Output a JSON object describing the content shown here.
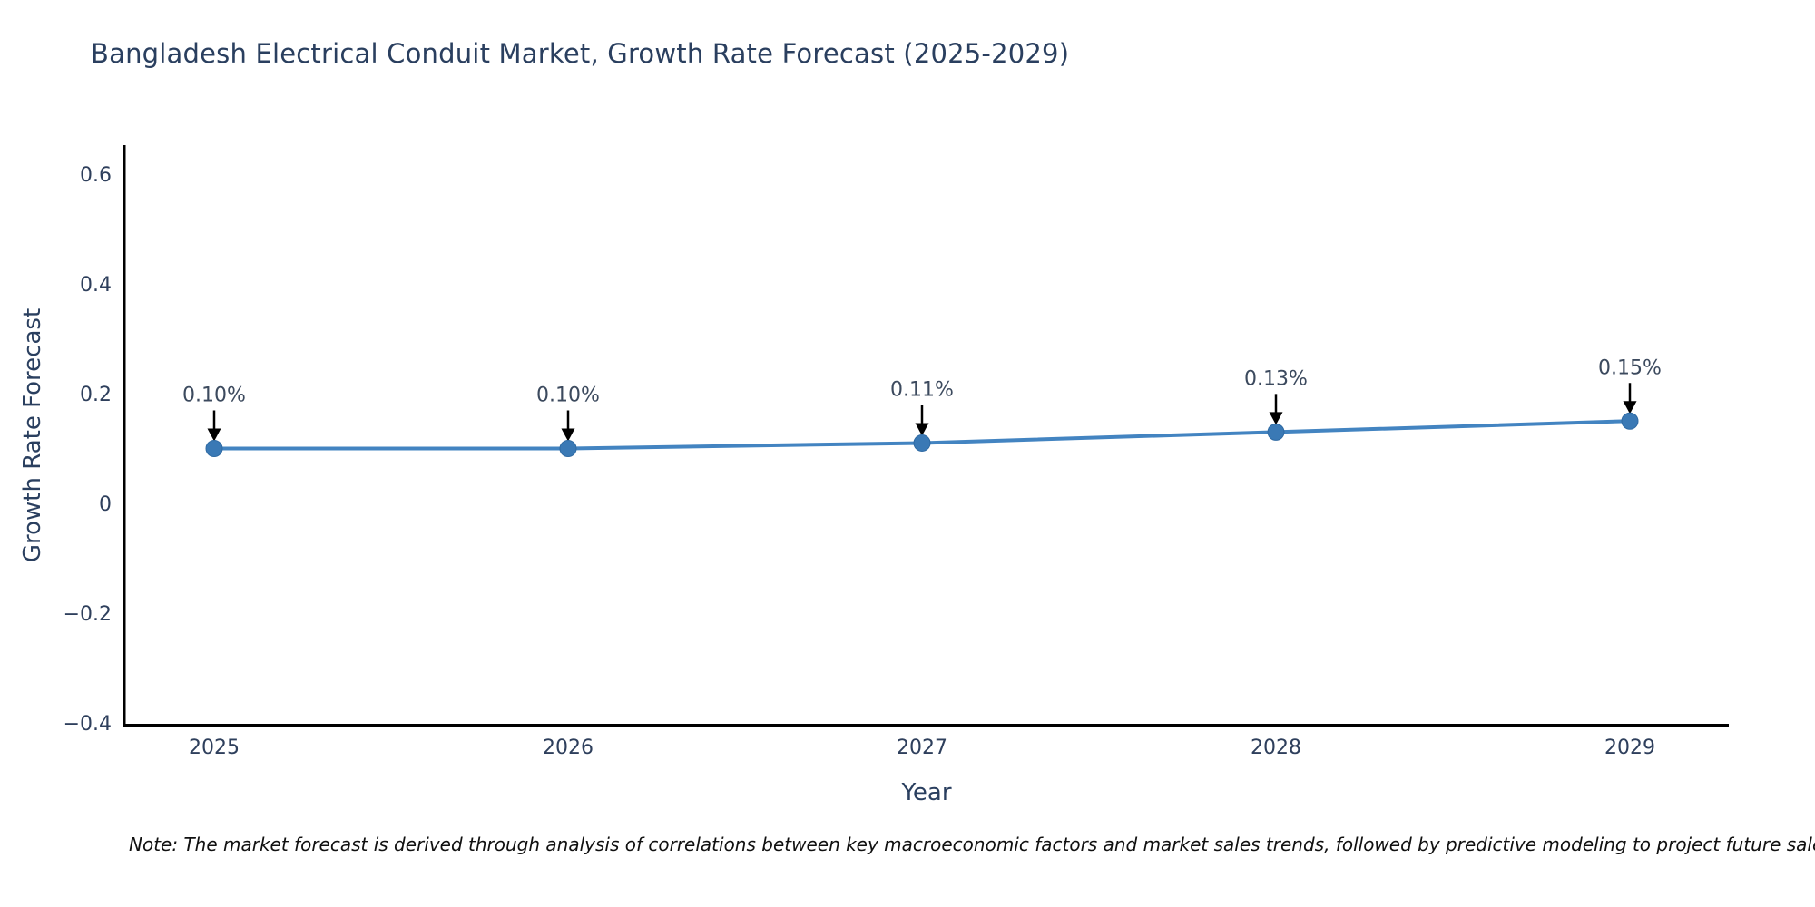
{
  "chart_data": {
    "type": "line",
    "title": "Bangladesh Electrical Conduit Market, Growth Rate Forecast (2025-2029)",
    "xlabel": "Year",
    "ylabel": "Growth Rate Forecast",
    "x": [
      2025,
      2026,
      2027,
      2028,
      2029
    ],
    "y": [
      0.1,
      0.1,
      0.11,
      0.13,
      0.15
    ],
    "point_labels": [
      "0.10%",
      "0.10%",
      "0.11%",
      "0.13%",
      "0.15%"
    ],
    "xticks": [
      {
        "label": "2025",
        "value": 2025
      },
      {
        "label": "2026",
        "value": 2026
      },
      {
        "label": "2027",
        "value": 2027
      },
      {
        "label": "2028",
        "value": 2028
      },
      {
        "label": "2029",
        "value": 2029
      }
    ],
    "yticks": [
      {
        "label": "0.6",
        "value": 0.6
      },
      {
        "label": "0.4",
        "value": 0.4
      },
      {
        "label": "0.2",
        "value": 0.2
      },
      {
        "label": "0",
        "value": 0
      },
      {
        "label": "−0.2",
        "value": -0.2
      },
      {
        "label": "−0.4",
        "value": -0.4
      }
    ],
    "xlim": [
      2024.75,
      2029.28
    ],
    "ylim": [
      -0.405,
      0.653
    ],
    "grid": false,
    "legend": false,
    "annotation_style": "black-down-arrow",
    "colors": {
      "line": "#4384c1",
      "marker": "#3a79b5",
      "marker_edge": "#2f6aa3",
      "axis": "#000000",
      "title": "#2a3f5f",
      "axis_title": "#2a3f5f",
      "tick": "#2e3f5c",
      "annotation": "#3c4a5e",
      "arrow": "#000000",
      "note": "#101010",
      "background": "#ffffff"
    }
  },
  "note": "Note: The market forecast is derived through analysis of correlations between key macroeconomic factors and market sales trends, followed by predictive modeling to project future sales"
}
